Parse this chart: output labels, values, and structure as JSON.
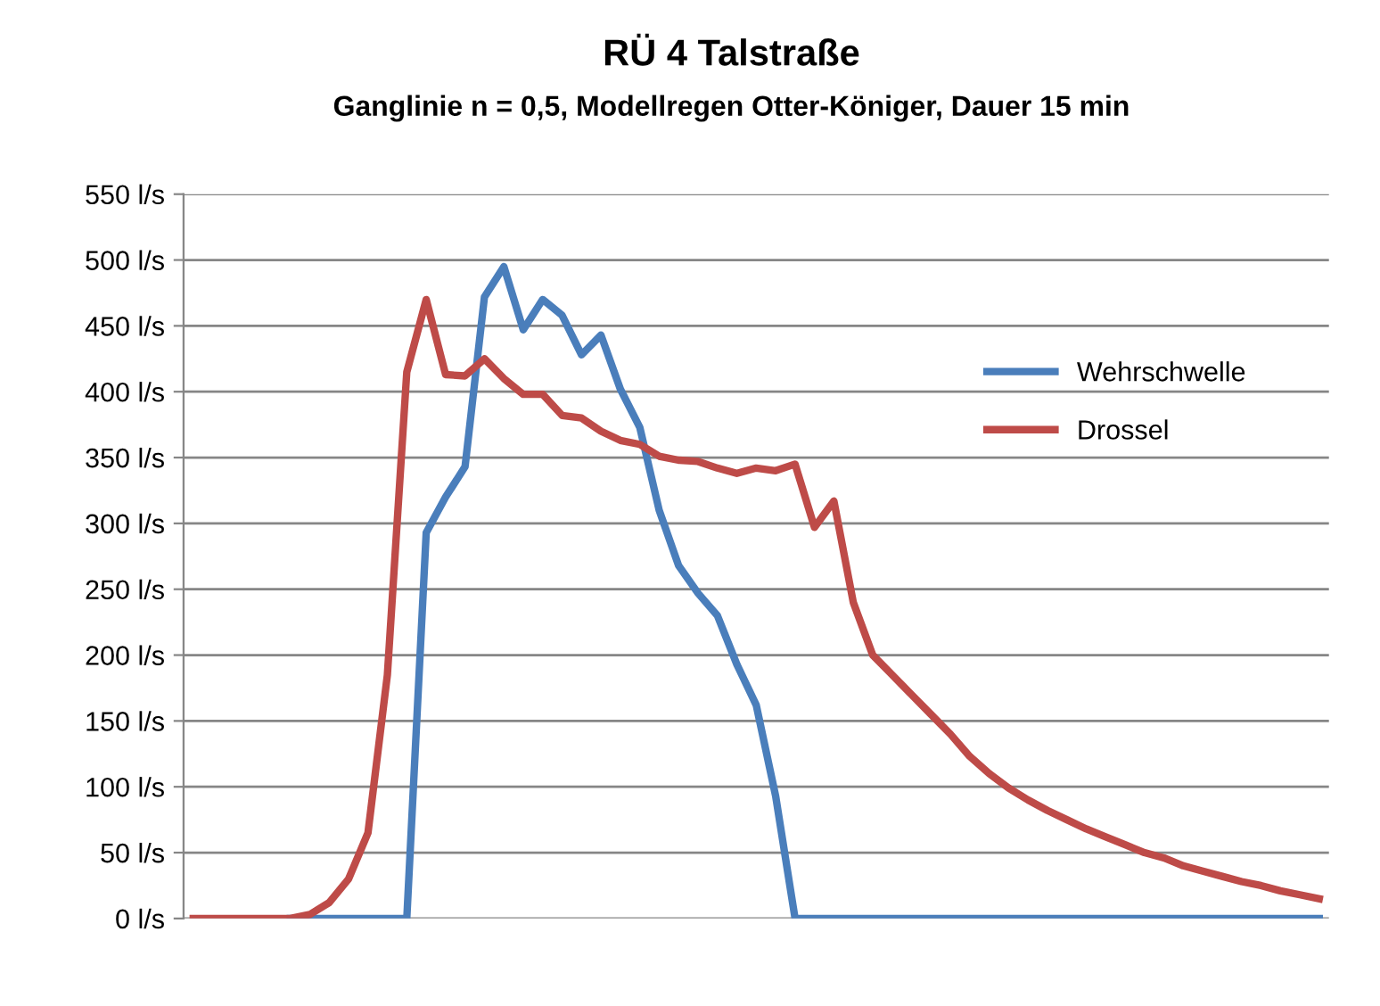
{
  "chart_data": {
    "type": "line",
    "title": "RÜ 4 Talstraße",
    "subtitle": "Ganglinie n = 0,5, Modellregen Otter-Königer, Dauer 15 min",
    "categories": [
      null,
      null,
      null,
      null,
      null,
      null,
      null,
      null,
      null,
      null,
      null,
      null,
      null,
      null,
      null,
      null,
      null,
      null,
      null,
      null,
      null,
      null,
      null,
      null,
      null,
      null,
      null,
      null,
      null,
      null,
      null,
      null,
      null,
      null,
      null,
      null,
      null,
      null,
      null,
      null,
      null,
      null,
      null,
      null,
      null,
      null,
      null,
      null,
      null,
      null,
      null,
      null,
      null,
      null,
      null,
      null,
      null,
      null,
      null
    ],
    "series": [
      {
        "name": "Wehrschwelle",
        "color": "#4a7ebb",
        "values": [
          null,
          null,
          null,
          null,
          null,
          0,
          0,
          0,
          0,
          0,
          0,
          0,
          293,
          320,
          343,
          472,
          495,
          447,
          470,
          458,
          428,
          443,
          402,
          373,
          310,
          268,
          247,
          230,
          193,
          162,
          93,
          0,
          0,
          0,
          0,
          0,
          0,
          0,
          0,
          0,
          0,
          0,
          0,
          0,
          0,
          0,
          0,
          0,
          0,
          0,
          0,
          0,
          0,
          0,
          0,
          0,
          0,
          0,
          0
        ]
      },
      {
        "name": "Drossel",
        "color": "#be4b48",
        "values": [
          0,
          0,
          0,
          0,
          0,
          0,
          3,
          12,
          30,
          65,
          185,
          415,
          470,
          413,
          412,
          425,
          410,
          398,
          398,
          382,
          380,
          370,
          363,
          360,
          351,
          348,
          347,
          342,
          338,
          342,
          340,
          345,
          297,
          317,
          240,
          200,
          185,
          170,
          155,
          140,
          123,
          110,
          99,
          90,
          82,
          75,
          68,
          62,
          56,
          50,
          46,
          40,
          36,
          32,
          28,
          25,
          21,
          18,
          15
        ]
      }
    ],
    "ylim": [
      0,
      550
    ],
    "yticks": [
      {
        "value": 0,
        "label": "0 l/s"
      },
      {
        "value": 50,
        "label": "50 l/s"
      },
      {
        "value": 100,
        "label": "100 l/s"
      },
      {
        "value": 150,
        "label": "150 l/s"
      },
      {
        "value": 200,
        "label": "200 l/s"
      },
      {
        "value": 250,
        "label": "250 l/s"
      },
      {
        "value": 300,
        "label": "300 l/s"
      },
      {
        "value": 350,
        "label": "350 l/s"
      },
      {
        "value": 400,
        "label": "400 l/s"
      },
      {
        "value": 450,
        "label": "450 l/s"
      },
      {
        "value": 500,
        "label": "500 l/s"
      },
      {
        "value": 550,
        "label": "550 l/s"
      }
    ],
    "grid": "y",
    "legend": "right",
    "marker": "none",
    "line_style": "solid"
  }
}
